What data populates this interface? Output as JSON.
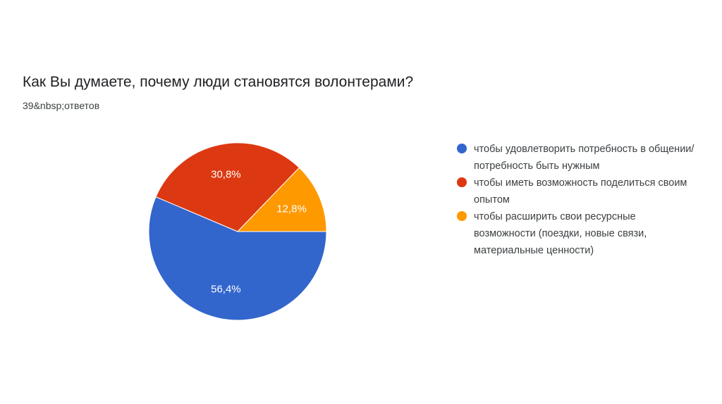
{
  "title": "Как Вы думаете, почему люди становятся волонтерами?",
  "subtitle": "39&nbsp;ответов",
  "chart_data": {
    "type": "pie",
    "title": "Как Вы думаете, почему люди становятся волонтерами?",
    "slices": [
      {
        "label": "чтобы удовлетворить потребность в общении/ потребность быть нужным",
        "value": 56.4,
        "value_label": "56,4%",
        "color": "#3366cc"
      },
      {
        "label": "чтобы иметь возможность поделиться своим опытом",
        "value": 30.8,
        "value_label": "30,8%",
        "color": "#dc3912"
      },
      {
        "label": "чтобы расширить свои ресурсные возможности (поездки, новые связи, материальные ценности)",
        "value": 12.8,
        "value_label": "12,8%",
        "color": "#ff9900"
      }
    ],
    "legend_position": "right"
  }
}
